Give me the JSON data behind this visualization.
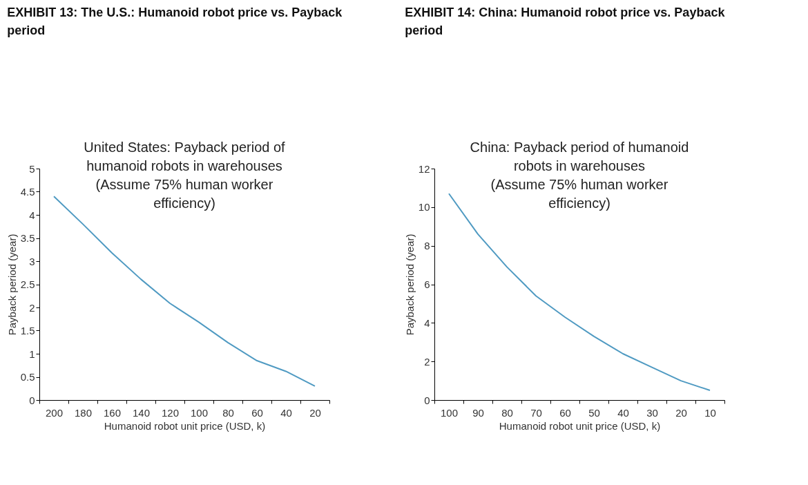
{
  "chart_data": [
    {
      "type": "line",
      "title": "EXHIBIT 13: The U.S.: Humanoid robot price vs. Payback period",
      "subtitle": "United States: Payback period of humanoid robots in warehouses (Assume 75% human worker efficiency)",
      "xlabel": "Humanoid robot unit price (USD, k)",
      "ylabel": "Payback period (year)",
      "categories": [
        "200",
        "180",
        "160",
        "140",
        "120",
        "100",
        "80",
        "60",
        "40",
        "20"
      ],
      "series": [
        {
          "color": "#4f9ac2",
          "values": [
            4.4,
            3.8,
            3.18,
            2.61,
            2.09,
            1.68,
            1.24,
            0.85,
            0.62,
            0.3
          ]
        }
      ],
      "ylim": [
        0,
        5
      ],
      "yticks": [
        0,
        0.5,
        1,
        1.5,
        2,
        2.5,
        3,
        3.5,
        4,
        4.5,
        5
      ],
      "grid": false
    },
    {
      "type": "line",
      "title": "EXHIBIT 14: China: Humanoid robot price vs. Payback period",
      "subtitle": "China: Payback period of humanoid robots in warehouses (Assume 75% human worker efficiency)",
      "xlabel": "Humanoid robot unit price (USD, k)",
      "ylabel": "Payback period (year)",
      "categories": [
        "100",
        "90",
        "80",
        "70",
        "60",
        "50",
        "40",
        "30",
        "20",
        "10"
      ],
      "series": [
        {
          "color": "#4f9ac2",
          "values": [
            10.7,
            8.6,
            6.9,
            5.4,
            4.3,
            3.3,
            2.4,
            1.7,
            1.0,
            0.5
          ]
        }
      ],
      "ylim": [
        0,
        12
      ],
      "yticks": [
        0,
        2,
        4,
        6,
        8,
        10,
        12
      ],
      "grid": false
    }
  ]
}
